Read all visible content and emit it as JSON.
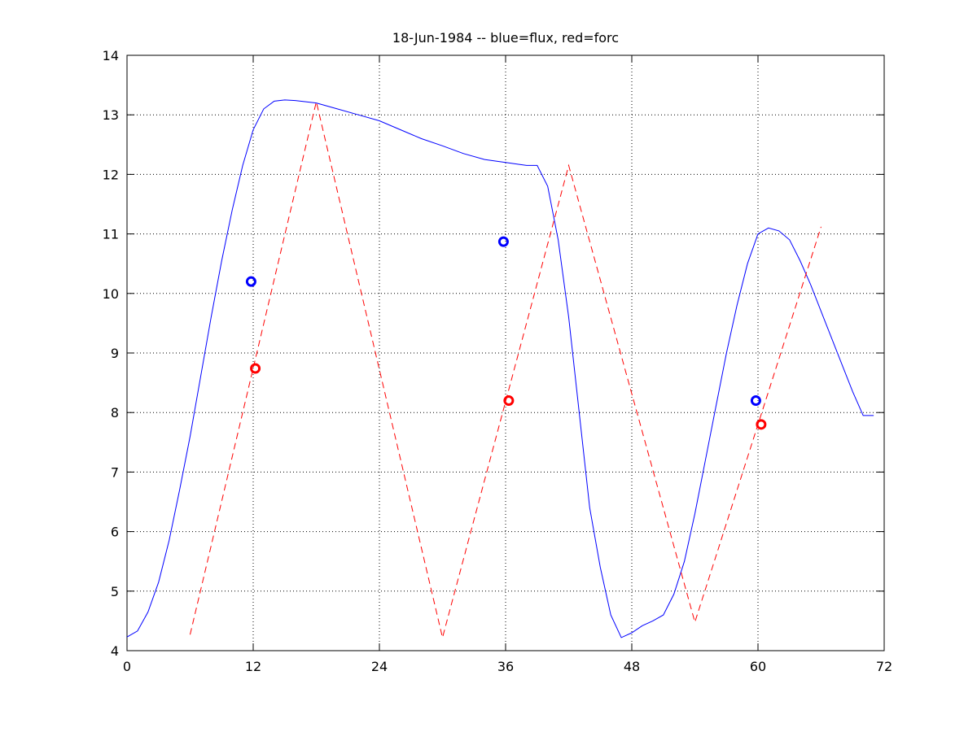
{
  "chart_data": {
    "type": "line",
    "title": "18-Jun-1984 -- blue=flux, red=forc",
    "xlabel": "",
    "ylabel": "",
    "xlim": [
      0,
      72
    ],
    "ylim": [
      4,
      14
    ],
    "xticks": [
      0,
      12,
      24,
      36,
      48,
      60,
      72
    ],
    "yticks": [
      4,
      5,
      6,
      7,
      8,
      9,
      10,
      11,
      12,
      13,
      14
    ],
    "grid": true,
    "colors": {
      "blue": "#0000ff",
      "red": "#ff0000",
      "axis": "#000000",
      "grid": "#000000"
    },
    "series": [
      {
        "color": "#0000ff",
        "style": "solid",
        "x": [
          0,
          1,
          2,
          3,
          4,
          5,
          6,
          7,
          8,
          9,
          10,
          11,
          12,
          13,
          14,
          15,
          16,
          17,
          18,
          20,
          22,
          24,
          26,
          28,
          30,
          32,
          34,
          36,
          38,
          39,
          40,
          41,
          42,
          43,
          44,
          45,
          46,
          47,
          48,
          49,
          50,
          51,
          52,
          53,
          54,
          55,
          56,
          57,
          58,
          59,
          60,
          61,
          62,
          63,
          64,
          65,
          66,
          67,
          68,
          69,
          70,
          71
        ],
        "y": [
          4.23,
          4.33,
          4.65,
          5.15,
          5.85,
          6.7,
          7.6,
          8.6,
          9.6,
          10.55,
          11.4,
          12.15,
          12.75,
          13.1,
          13.23,
          13.25,
          13.24,
          13.22,
          13.2,
          13.1,
          13.0,
          12.9,
          12.75,
          12.6,
          12.48,
          12.35,
          12.25,
          12.2,
          12.15,
          12.15,
          11.8,
          10.9,
          9.6,
          8.0,
          6.4,
          5.4,
          4.6,
          4.22,
          4.3,
          4.42,
          4.5,
          4.6,
          4.95,
          5.5,
          6.3,
          7.2,
          8.1,
          9.0,
          9.8,
          10.5,
          11.0,
          11.1,
          11.05,
          10.9,
          10.55,
          10.15,
          9.7,
          9.25,
          8.8,
          8.35,
          7.95,
          7.95
        ]
      },
      {
        "color": "#ff0000",
        "style": "dashed",
        "x": [
          6,
          18,
          30,
          42,
          54,
          66
        ],
        "y": [
          4.27,
          13.22,
          4.22,
          12.15,
          4.48,
          11.12
        ]
      }
    ],
    "markers": [
      {
        "color": "#0000ff",
        "x": 11.8,
        "y": 10.2
      },
      {
        "color": "#ff0000",
        "x": 12.2,
        "y": 8.74
      },
      {
        "color": "#0000ff",
        "x": 35.8,
        "y": 10.87
      },
      {
        "color": "#ff0000",
        "x": 36.3,
        "y": 8.2
      },
      {
        "color": "#0000ff",
        "x": 59.8,
        "y": 8.2
      },
      {
        "color": "#ff0000",
        "x": 60.3,
        "y": 7.8
      }
    ]
  }
}
